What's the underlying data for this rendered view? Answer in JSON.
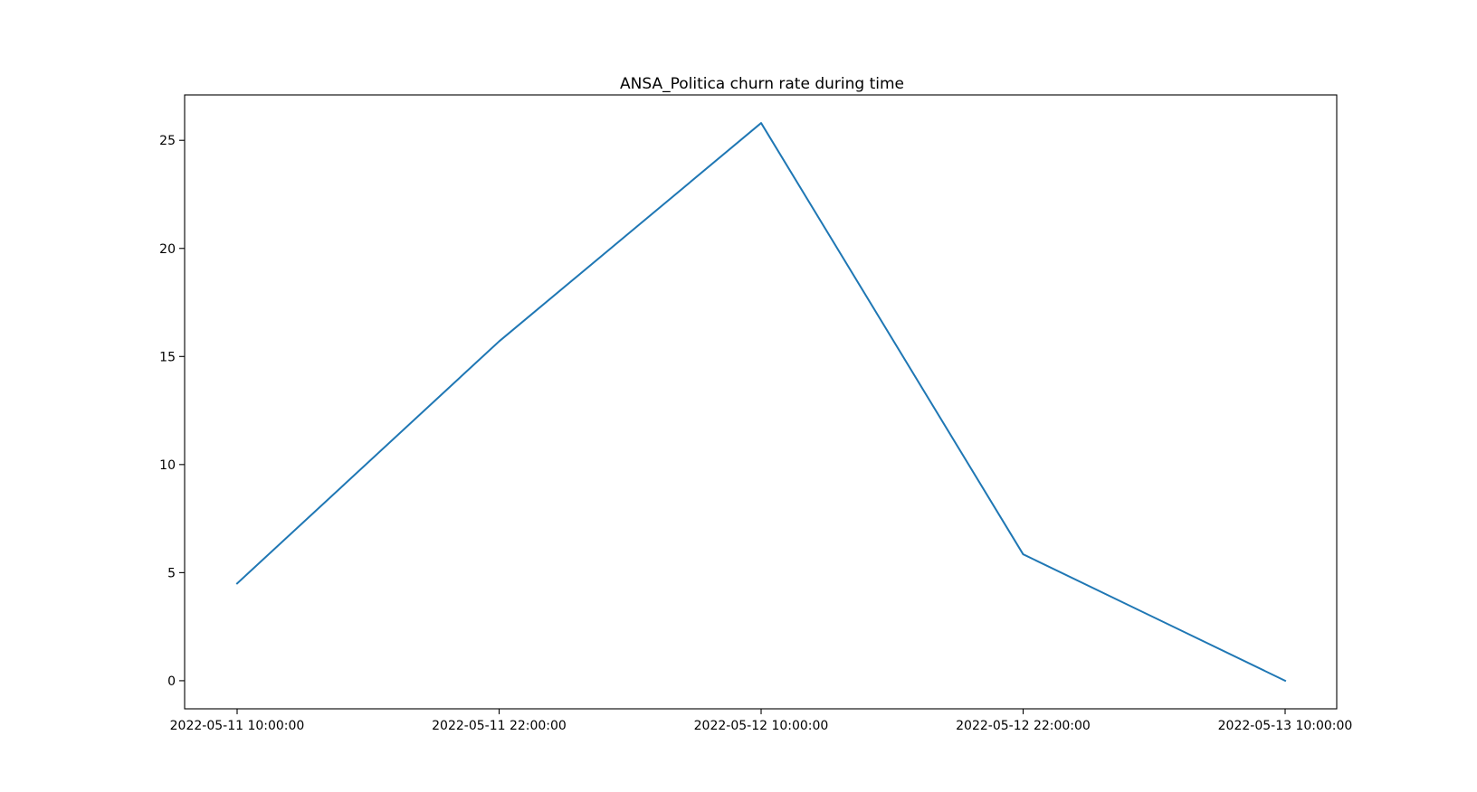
{
  "chart_data": {
    "type": "line",
    "title": "ANSA_Politica churn rate during time",
    "xlabel": "",
    "ylabel": "",
    "x": [
      "2022-05-11 10:00:00",
      "2022-05-11 22:00:00",
      "2022-05-12 10:00:00",
      "2022-05-12 22:00:00",
      "2022-05-13 10:00:00"
    ],
    "x_ticks": [
      "2022-05-11 10:00:00",
      "2022-05-11 22:00:00",
      "2022-05-12 10:00:00",
      "2022-05-12 22:00:00",
      "2022-05-13 10:00:00"
    ],
    "y_ticks": [
      0,
      5,
      10,
      15,
      20,
      25
    ],
    "ylim": [
      -1.3,
      27.1
    ],
    "grid": false,
    "legend": "none",
    "series": [
      {
        "color": "#1f77b4",
        "values": [
          4.5,
          15.7,
          25.8,
          5.85,
          0.0
        ]
      }
    ]
  }
}
